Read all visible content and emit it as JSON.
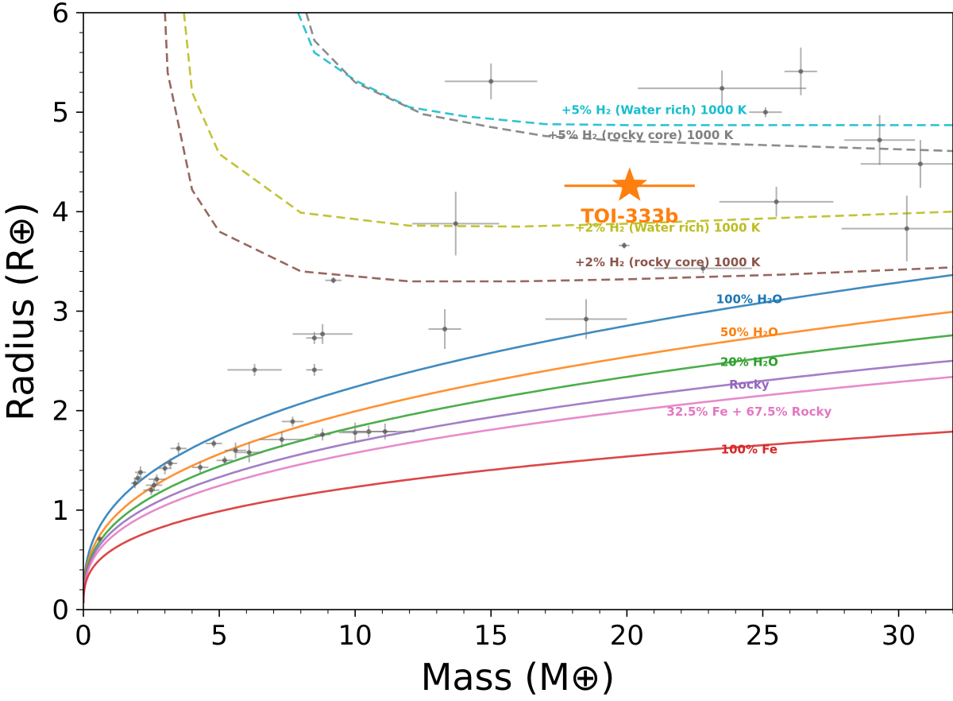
{
  "chart_data": {
    "type": "scatter",
    "xlabel": "Mass (M⊕)",
    "ylabel": "Radius (R⊕)",
    "xlim": [
      0,
      32
    ],
    "ylim": [
      0,
      6
    ],
    "x_ticks": [
      "0",
      "5",
      "10",
      "15",
      "20",
      "25",
      "30"
    ],
    "y_ticks": [
      "0",
      "1",
      "2",
      "3",
      "4",
      "5",
      "6"
    ],
    "composition_curves": [
      {
        "name": "100% H₂O",
        "color": "#1f77b4",
        "r1": 1.0,
        "alpha": 0.35,
        "label_at": [
          24.5,
          3.08
        ]
      },
      {
        "name": "50% H₂O",
        "color": "#ff7f0e",
        "r1": 0.89,
        "alpha": 0.35,
        "label_at": [
          24.5,
          2.75
        ]
      },
      {
        "name": "20% H₂O",
        "color": "#2ca02c",
        "r1": 0.82,
        "alpha": 0.35,
        "label_at": [
          24.5,
          2.45
        ]
      },
      {
        "name": "Rocky",
        "color": "#9467bd",
        "r1": 0.77,
        "alpha": 0.34,
        "label_at": [
          24.5,
          2.22
        ]
      },
      {
        "name": "32.5% Fe + 67.5% Rocky",
        "color": "#e377c2",
        "r1": 0.72,
        "alpha": 0.34,
        "label_at": [
          24.5,
          1.95
        ]
      },
      {
        "name": "100% Fe",
        "color": "#d62728",
        "r1": 0.59,
        "alpha": 0.32,
        "label_at": [
          24.5,
          1.57
        ]
      }
    ],
    "envelope_curves": [
      {
        "name": "+5% H₂ (Water rich) 1000 K",
        "color": "#17becf",
        "points": [
          [
            7.9,
            6.0
          ],
          [
            8.5,
            5.6
          ],
          [
            10,
            5.32
          ],
          [
            12,
            5.05
          ],
          [
            14,
            4.96
          ],
          [
            17,
            4.88
          ],
          [
            20,
            4.87
          ],
          [
            25,
            4.87
          ],
          [
            32,
            4.87
          ]
        ],
        "label_at": [
          21,
          4.98
        ]
      },
      {
        "name": "+5% H₂ (rocky core) 1000 K",
        "color": "#7f7f7f",
        "points": [
          [
            8.2,
            6.0
          ],
          [
            8.5,
            5.72
          ],
          [
            10,
            5.3
          ],
          [
            12.5,
            4.98
          ],
          [
            15,
            4.85
          ],
          [
            17,
            4.76
          ],
          [
            20,
            4.71
          ],
          [
            25,
            4.67
          ],
          [
            32,
            4.61
          ]
        ],
        "label_at": [
          20.5,
          4.73
        ]
      },
      {
        "name": "+2% H₂ (Water rich) 1000 K",
        "color": "#bcbd22",
        "points": [
          [
            3.7,
            6.0
          ],
          [
            4,
            5.2
          ],
          [
            5,
            4.58
          ],
          [
            8,
            3.99
          ],
          [
            12,
            3.86
          ],
          [
            16,
            3.85
          ],
          [
            20,
            3.88
          ],
          [
            26,
            3.94
          ],
          [
            32,
            4.0
          ]
        ],
        "label_at": [
          21.5,
          3.8
        ]
      },
      {
        "name": "+2% H₂ (rocky core) 1000 K",
        "color": "#8c564b",
        "points": [
          [
            3.0,
            6.0
          ],
          [
            3.1,
            5.4
          ],
          [
            4,
            4.22
          ],
          [
            5,
            3.8
          ],
          [
            8,
            3.4
          ],
          [
            12,
            3.3
          ],
          [
            16,
            3.3
          ],
          [
            20,
            3.32
          ],
          [
            26,
            3.37
          ],
          [
            32,
            3.44
          ]
        ],
        "label_at": [
          21.5,
          3.45
        ]
      }
    ],
    "target": {
      "label": "TOI-333b",
      "mass": 20.1,
      "radius": 4.26,
      "mass_err": [
        2.4,
        2.4
      ],
      "radius_err": [
        0.0,
        0.0
      ],
      "color": "#ff7f0e"
    },
    "known_planets": [
      [
        0.6,
        0.71,
        0.05,
        0.02
      ],
      [
        1.9,
        1.27,
        0.15,
        0.05
      ],
      [
        2.0,
        1.32,
        0.15,
        0.05
      ],
      [
        2.1,
        1.38,
        0.2,
        0.06
      ],
      [
        2.5,
        1.2,
        0.3,
        0.05
      ],
      [
        2.6,
        1.25,
        0.3,
        0.06
      ],
      [
        2.7,
        1.31,
        0.3,
        0.05
      ],
      [
        3.0,
        1.42,
        0.25,
        0.06
      ],
      [
        3.2,
        1.47,
        0.25,
        0.05
      ],
      [
        3.5,
        1.62,
        0.3,
        0.06
      ],
      [
        4.3,
        1.43,
        0.3,
        0.06
      ],
      [
        4.8,
        1.67,
        0.3,
        0.04
      ],
      [
        5.2,
        1.5,
        0.3,
        0.04
      ],
      [
        5.6,
        1.6,
        0.4,
        0.08
      ],
      [
        6.1,
        1.58,
        0.5,
        0.1
      ],
      [
        6.3,
        2.41,
        1.0,
        0.06
      ],
      [
        7.3,
        1.71,
        0.8,
        0.08
      ],
      [
        7.7,
        1.89,
        0.4,
        0.05
      ],
      [
        8.5,
        2.41,
        0.3,
        0.06
      ],
      [
        8.8,
        1.76,
        0.3,
        0.06
      ],
      [
        8.5,
        2.73,
        0.3,
        0.06
      ],
      [
        8.8,
        2.77,
        1.1,
        0.1
      ],
      [
        9.2,
        3.31,
        0.3,
        0.03
      ],
      [
        10.0,
        1.78,
        0.6,
        0.1
      ],
      [
        10.5,
        1.79,
        1.0,
        0.06
      ],
      [
        11.1,
        1.79,
        1.1,
        0.08
      ],
      [
        13.3,
        2.82,
        0.6,
        0.2
      ],
      [
        13.7,
        3.88,
        1.6,
        0.32
      ],
      [
        15.0,
        5.31,
        1.7,
        0.18
      ],
      [
        18.5,
        2.92,
        1.5,
        0.2
      ],
      [
        19.9,
        3.66,
        0.2,
        0.03
      ],
      [
        22.8,
        3.43,
        1.8,
        0.05
      ],
      [
        23.5,
        5.24,
        3.1,
        0.18
      ],
      [
        25.1,
        5.0,
        0.6,
        0.05
      ],
      [
        25.5,
        4.1,
        2.1,
        0.15
      ],
      [
        26.4,
        5.41,
        0.6,
        0.24
      ],
      [
        29.3,
        4.72,
        1.3,
        0.25
      ],
      [
        30.3,
        3.83,
        2.4,
        0.33
      ],
      [
        30.8,
        4.48,
        2.2,
        0.24
      ]
    ]
  }
}
